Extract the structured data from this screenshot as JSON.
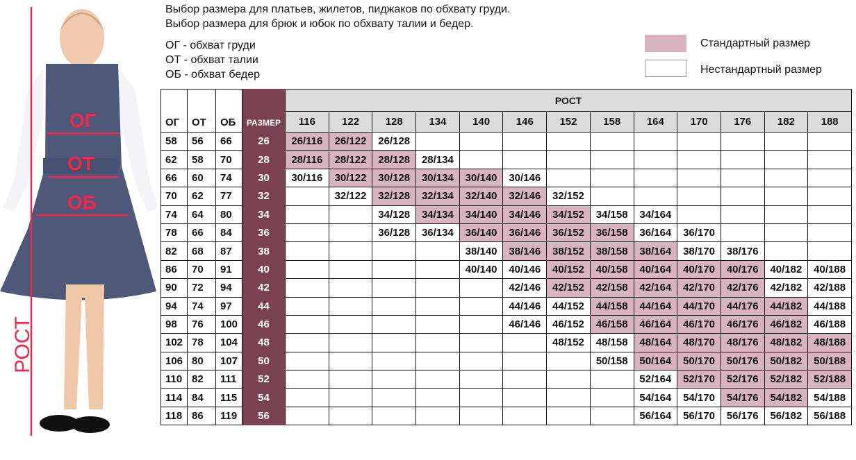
{
  "intro": {
    "line1": "Выбор размера для платьев, жилетов, пиджаков по обхвату груди.",
    "line2": "Выбор размера для брюк и юбок по обхвату талии и бедер."
  },
  "abbreviations": [
    "ОГ - обхват груди",
    "ОТ - обхват талии",
    "ОБ - обхват бедер"
  ],
  "legend": {
    "standard": "Стандартный размер",
    "nonstandard": "Нестандартный размер"
  },
  "colors": {
    "standard": "#d8b4c0",
    "size_column": "#7a4152",
    "header": "#dcdcdc",
    "measure_marks": "#f0284a"
  },
  "figure": {
    "labels": {
      "chest": "ОГ",
      "waist": "ОТ",
      "hips": "ОБ",
      "height": "РОСТ"
    }
  },
  "table": {
    "headers": {
      "chest": "ОГ",
      "waist": "ОТ",
      "hips": "ОБ",
      "size": "РАЗМЕР",
      "height": "РОСТ"
    },
    "heights": [
      "116",
      "122",
      "128",
      "134",
      "140",
      "146",
      "152",
      "158",
      "164",
      "170",
      "176",
      "182",
      "188"
    ],
    "rows": [
      {
        "og": "58",
        "ot": "56",
        "ob": "66",
        "size": "26",
        "cells": [
          [
            "26/116",
            1
          ],
          [
            "26/122",
            1
          ],
          [
            "26/128",
            0
          ],
          [
            "",
            0
          ],
          [
            "",
            0
          ],
          [
            "",
            0
          ],
          [
            "",
            0
          ],
          [
            "",
            0
          ],
          [
            "",
            0
          ],
          [
            "",
            0
          ],
          [
            "",
            0
          ],
          [
            "",
            0
          ],
          [
            "",
            0
          ]
        ]
      },
      {
        "og": "62",
        "ot": "58",
        "ob": "70",
        "size": "28",
        "cells": [
          [
            "28/116",
            1
          ],
          [
            "28/122",
            1
          ],
          [
            "28/128",
            1
          ],
          [
            "28/134",
            0
          ],
          [
            "",
            0
          ],
          [
            "",
            0
          ],
          [
            "",
            0
          ],
          [
            "",
            0
          ],
          [
            "",
            0
          ],
          [
            "",
            0
          ],
          [
            "",
            0
          ],
          [
            "",
            0
          ],
          [
            "",
            0
          ]
        ]
      },
      {
        "og": "66",
        "ot": "60",
        "ob": "74",
        "size": "30",
        "cells": [
          [
            "30/116",
            0
          ],
          [
            "30/122",
            1
          ],
          [
            "30/128",
            1
          ],
          [
            "30/134",
            1
          ],
          [
            "30/140",
            1
          ],
          [
            "30/146",
            0
          ],
          [
            "",
            0
          ],
          [
            "",
            0
          ],
          [
            "",
            0
          ],
          [
            "",
            0
          ],
          [
            "",
            0
          ],
          [
            "",
            0
          ],
          [
            "",
            0
          ]
        ]
      },
      {
        "og": "70",
        "ot": "62",
        "ob": "77",
        "size": "32",
        "cells": [
          [
            "",
            0
          ],
          [
            "32/122",
            0
          ],
          [
            "32/128",
            1
          ],
          [
            "32/134",
            1
          ],
          [
            "32/140",
            1
          ],
          [
            "32/146",
            1
          ],
          [
            "32/152",
            0
          ],
          [
            "",
            0
          ],
          [
            "",
            0
          ],
          [
            "",
            0
          ],
          [
            "",
            0
          ],
          [
            "",
            0
          ],
          [
            "",
            0
          ]
        ]
      },
      {
        "og": "74",
        "ot": "64",
        "ob": "80",
        "size": "34",
        "cells": [
          [
            "",
            0
          ],
          [
            "",
            0
          ],
          [
            "34/128",
            0
          ],
          [
            "34/134",
            1
          ],
          [
            "34/140",
            1
          ],
          [
            "34/146",
            1
          ],
          [
            "34/152",
            1
          ],
          [
            "34/158",
            0
          ],
          [
            "34/164",
            0
          ],
          [
            "",
            0
          ],
          [
            "",
            0
          ],
          [
            "",
            0
          ],
          [
            "",
            0
          ]
        ]
      },
      {
        "og": "78",
        "ot": "66",
        "ob": "84",
        "size": "36",
        "cells": [
          [
            "",
            0
          ],
          [
            "",
            0
          ],
          [
            "36/128",
            0
          ],
          [
            "36/134",
            0
          ],
          [
            "36/140",
            1
          ],
          [
            "36/146",
            1
          ],
          [
            "36/152",
            1
          ],
          [
            "36/158",
            1
          ],
          [
            "36/164",
            0
          ],
          [
            "36/170",
            0
          ],
          [
            "",
            0
          ],
          [
            "",
            0
          ],
          [
            "",
            0
          ]
        ]
      },
      {
        "og": "82",
        "ot": "68",
        "ob": "87",
        "size": "38",
        "cells": [
          [
            "",
            0
          ],
          [
            "",
            0
          ],
          [
            "",
            0
          ],
          [
            "",
            0
          ],
          [
            "38/140",
            0
          ],
          [
            "38/146",
            1
          ],
          [
            "38/152",
            1
          ],
          [
            "38/158",
            1
          ],
          [
            "38/164",
            1
          ],
          [
            "38/170",
            0
          ],
          [
            "38/176",
            0
          ],
          [
            "",
            0
          ],
          [
            "",
            0
          ]
        ]
      },
      {
        "og": "86",
        "ot": "70",
        "ob": "91",
        "size": "40",
        "cells": [
          [
            "",
            0
          ],
          [
            "",
            0
          ],
          [
            "",
            0
          ],
          [
            "",
            0
          ],
          [
            "40/140",
            0
          ],
          [
            "40/146",
            0
          ],
          [
            "40/152",
            1
          ],
          [
            "40/158",
            1
          ],
          [
            "40/164",
            1
          ],
          [
            "40/170",
            1
          ],
          [
            "40/176",
            1
          ],
          [
            "40/182",
            0
          ],
          [
            "40/188",
            0
          ]
        ]
      },
      {
        "og": "90",
        "ot": "72",
        "ob": "94",
        "size": "42",
        "cells": [
          [
            "",
            0
          ],
          [
            "",
            0
          ],
          [
            "",
            0
          ],
          [
            "",
            0
          ],
          [
            "",
            0
          ],
          [
            "42/146",
            0
          ],
          [
            "42/152",
            1
          ],
          [
            "42/158",
            1
          ],
          [
            "42/164",
            1
          ],
          [
            "42/170",
            1
          ],
          [
            "42/176",
            1
          ],
          [
            "42/182",
            0
          ],
          [
            "42/188",
            0
          ]
        ]
      },
      {
        "og": "94",
        "ot": "74",
        "ob": "97",
        "size": "44",
        "cells": [
          [
            "",
            0
          ],
          [
            "",
            0
          ],
          [
            "",
            0
          ],
          [
            "",
            0
          ],
          [
            "",
            0
          ],
          [
            "44/146",
            0
          ],
          [
            "44/152",
            0
          ],
          [
            "44/158",
            1
          ],
          [
            "44/164",
            1
          ],
          [
            "44/170",
            1
          ],
          [
            "44/176",
            1
          ],
          [
            "44/182",
            1
          ],
          [
            "44/188",
            0
          ]
        ]
      },
      {
        "og": "98",
        "ot": "76",
        "ob": "100",
        "size": "46",
        "cells": [
          [
            "",
            0
          ],
          [
            "",
            0
          ],
          [
            "",
            0
          ],
          [
            "",
            0
          ],
          [
            "",
            0
          ],
          [
            "46/146",
            0
          ],
          [
            "46/152",
            0
          ],
          [
            "46/158",
            1
          ],
          [
            "46/164",
            1
          ],
          [
            "46/170",
            1
          ],
          [
            "46/176",
            1
          ],
          [
            "46/182",
            1
          ],
          [
            "46/188",
            0
          ]
        ]
      },
      {
        "og": "102",
        "ot": "78",
        "ob": "104",
        "size": "48",
        "cells": [
          [
            "",
            0
          ],
          [
            "",
            0
          ],
          [
            "",
            0
          ],
          [
            "",
            0
          ],
          [
            "",
            0
          ],
          [
            "",
            0
          ],
          [
            "48/152",
            0
          ],
          [
            "48/158",
            0
          ],
          [
            "48/164",
            1
          ],
          [
            "48/170",
            1
          ],
          [
            "48/176",
            1
          ],
          [
            "48/182",
            1
          ],
          [
            "48/188",
            1
          ]
        ]
      },
      {
        "og": "106",
        "ot": "80",
        "ob": "107",
        "size": "50",
        "cells": [
          [
            "",
            0
          ],
          [
            "",
            0
          ],
          [
            "",
            0
          ],
          [
            "",
            0
          ],
          [
            "",
            0
          ],
          [
            "",
            0
          ],
          [
            "",
            0
          ],
          [
            "50/158",
            0
          ],
          [
            "50/164",
            1
          ],
          [
            "50/170",
            1
          ],
          [
            "50/176",
            1
          ],
          [
            "50/182",
            1
          ],
          [
            "50/188",
            1
          ]
        ]
      },
      {
        "og": "110",
        "ot": "82",
        "ob": "111",
        "size": "52",
        "cells": [
          [
            "",
            0
          ],
          [
            "",
            0
          ],
          [
            "",
            0
          ],
          [
            "",
            0
          ],
          [
            "",
            0
          ],
          [
            "",
            0
          ],
          [
            "",
            0
          ],
          [
            "",
            0
          ],
          [
            "52/164",
            0
          ],
          [
            "52/170",
            1
          ],
          [
            "52/176",
            1
          ],
          [
            "52/182",
            1
          ],
          [
            "52/188",
            1
          ]
        ]
      },
      {
        "og": "114",
        "ot": "84",
        "ob": "115",
        "size": "54",
        "cells": [
          [
            "",
            0
          ],
          [
            "",
            0
          ],
          [
            "",
            0
          ],
          [
            "",
            0
          ],
          [
            "",
            0
          ],
          [
            "",
            0
          ],
          [
            "",
            0
          ],
          [
            "",
            0
          ],
          [
            "54/164",
            0
          ],
          [
            "54/170",
            0
          ],
          [
            "54/176",
            1
          ],
          [
            "54/182",
            1
          ],
          [
            "54/188",
            0
          ]
        ]
      },
      {
        "og": "118",
        "ot": "86",
        "ob": "119",
        "size": "56",
        "cells": [
          [
            "",
            0
          ],
          [
            "",
            0
          ],
          [
            "",
            0
          ],
          [
            "",
            0
          ],
          [
            "",
            0
          ],
          [
            "",
            0
          ],
          [
            "",
            0
          ],
          [
            "",
            0
          ],
          [
            "56/164",
            0
          ],
          [
            "56/170",
            0
          ],
          [
            "56/176",
            0
          ],
          [
            "56/182",
            0
          ],
          [
            "56/188",
            0
          ]
        ]
      }
    ]
  }
}
